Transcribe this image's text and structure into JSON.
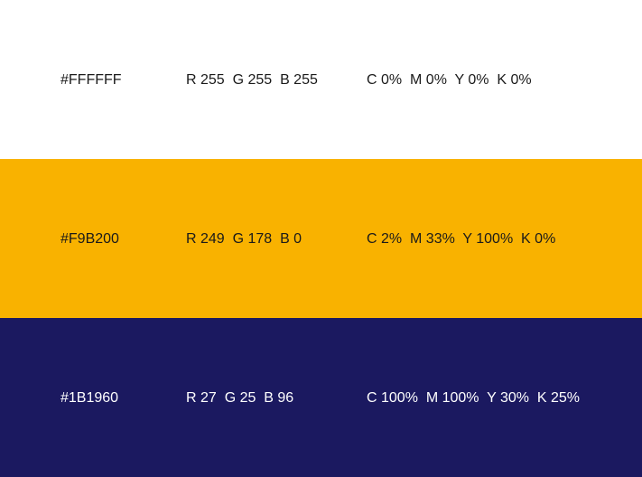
{
  "swatches": [
    {
      "hex": "#FFFFFF",
      "rgb": "R 255  G 255  B 255",
      "cmyk": "C 0%  M 0%  Y 0%  K 0%",
      "color": "#FFFFFF",
      "text_color": "#1a1a1a"
    },
    {
      "hex": "#F9B200",
      "rgb": "R 249  G 178  B 0",
      "cmyk": "C 2%  M 33%  Y 100%  K 0%",
      "color": "#F9B200",
      "text_color": "#1a1a1a"
    },
    {
      "hex": "#1B1960",
      "rgb": "R 27  G 25  B 96",
      "cmyk": "C 100%  M 100%  Y 30%  K 25%",
      "color": "#1B1960",
      "text_color": "#ffffff"
    }
  ]
}
